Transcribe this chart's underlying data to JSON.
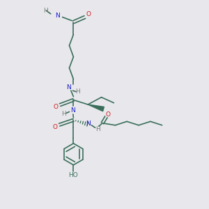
{
  "bg_color": "#e8e8ec",
  "bond_color": "#3a6e5a",
  "N_color": "#1a1acc",
  "O_color": "#cc1a1a",
  "H_color": "#7a7a7a",
  "font_size": 6.5,
  "line_width": 1.2,
  "fig_size": [
    3.0,
    3.0
  ],
  "dpi": 100,
  "xlim": [
    0,
    10
  ],
  "ylim": [
    0,
    10
  ]
}
